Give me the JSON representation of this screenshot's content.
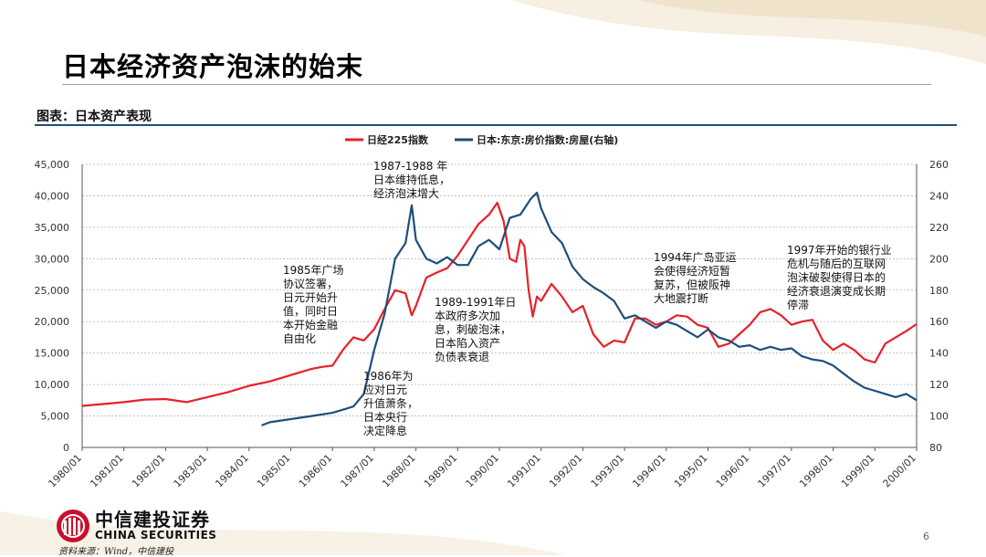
{
  "page": {
    "title": "日本经济资产泡沫的始末",
    "subtitle": "图表：日本资产表现",
    "source": "资料来源：Wind，中信建投",
    "page_number": "6",
    "logo": {
      "name_cn": "中信建投证券",
      "name_en": "CHINA SECURITIES"
    }
  },
  "colors": {
    "nikkei": "#e8202a",
    "housing": "#1f4e79",
    "accent": "#1f4e79"
  },
  "chart_data": {
    "type": "line",
    "title": "图表：日本资产表现",
    "x_labels": [
      "1980/01",
      "1981/01",
      "1982/01",
      "1983/01",
      "1984/01",
      "1985/01",
      "1986/01",
      "1987/01",
      "1988/01",
      "1989/01",
      "1990/01",
      "1991/01",
      "1992/01",
      "1993/01",
      "1994/01",
      "1995/01",
      "1996/01",
      "1997/01",
      "1998/01",
      "1999/01",
      "2000/01"
    ],
    "x_range": [
      1980.0,
      2000.0
    ],
    "y_left": {
      "range": [
        0,
        45000
      ],
      "ticks": [
        "0",
        "5,000",
        "10,000",
        "15,000",
        "20,000",
        "25,000",
        "30,000",
        "35,000",
        "40,000",
        "45,000"
      ]
    },
    "y_right": {
      "range": [
        80,
        260
      ],
      "ticks": [
        "80",
        "100",
        "120",
        "140",
        "160",
        "180",
        "200",
        "220",
        "240",
        "260"
      ]
    },
    "legend_position": "top-center",
    "series": [
      {
        "name": "日经225指数",
        "axis": "left",
        "x": [
          1980.0,
          1980.5,
          1981.0,
          1981.5,
          1982.0,
          1982.5,
          1983.0,
          1983.5,
          1984.0,
          1984.5,
          1985.0,
          1985.5,
          1985.75,
          1986.0,
          1986.25,
          1986.5,
          1986.75,
          1987.0,
          1987.25,
          1987.5,
          1987.75,
          1987.9,
          1988.0,
          1988.25,
          1988.5,
          1988.75,
          1989.0,
          1989.25,
          1989.5,
          1989.75,
          1989.95,
          1990.1,
          1990.25,
          1990.4,
          1990.5,
          1990.6,
          1990.7,
          1990.8,
          1990.9,
          1991.0,
          1991.25,
          1991.5,
          1991.75,
          1992.0,
          1992.25,
          1992.5,
          1992.75,
          1993.0,
          1993.25,
          1993.5,
          1993.75,
          1994.0,
          1994.25,
          1994.5,
          1994.75,
          1995.0,
          1995.25,
          1995.5,
          1995.75,
          1996.0,
          1996.25,
          1996.5,
          1996.75,
          1997.0,
          1997.25,
          1997.5,
          1997.75,
          1998.0,
          1998.25,
          1998.5,
          1998.75,
          1999.0,
          1999.25,
          1999.5,
          1999.75,
          2000.0
        ],
        "values": [
          6600,
          6900,
          7200,
          7600,
          7700,
          7200,
          8000,
          8800,
          9800,
          10500,
          11500,
          12500,
          12800,
          13000,
          15500,
          17500,
          17000,
          18800,
          22000,
          25000,
          24500,
          21000,
          22500,
          27000,
          27800,
          28500,
          30500,
          33000,
          35500,
          37000,
          38900,
          36000,
          30000,
          29500,
          33000,
          32000,
          25000,
          20800,
          24000,
          23300,
          26000,
          24000,
          21500,
          22500,
          18000,
          16000,
          17000,
          16700,
          20500,
          20500,
          19500,
          20000,
          21000,
          20800,
          19500,
          19000,
          16000,
          16500,
          18000,
          19500,
          21500,
          22000,
          21000,
          19500,
          20000,
          20300,
          17000,
          15500,
          16500,
          15500,
          14000,
          13500,
          16500,
          17500,
          18500,
          19600
        ]
      },
      {
        "name": "日本:东京:房价指数:房屋(右轴)",
        "axis": "right",
        "x": [
          1984.3,
          1984.5,
          1985.0,
          1985.5,
          1986.0,
          1986.5,
          1986.75,
          1987.0,
          1987.25,
          1987.5,
          1987.75,
          1987.9,
          1988.0,
          1988.25,
          1988.5,
          1988.75,
          1989.0,
          1989.25,
          1989.5,
          1989.75,
          1990.0,
          1990.25,
          1990.5,
          1990.75,
          1990.9,
          1991.0,
          1991.25,
          1991.5,
          1991.75,
          1992.0,
          1992.25,
          1992.5,
          1992.75,
          1993.0,
          1993.25,
          1993.5,
          1993.75,
          1994.0,
          1994.25,
          1994.5,
          1994.75,
          1995.0,
          1995.25,
          1995.5,
          1995.75,
          1996.0,
          1996.25,
          1996.5,
          1996.75,
          1997.0,
          1997.25,
          1997.5,
          1997.75,
          1998.0,
          1998.25,
          1998.5,
          1998.75,
          1999.0,
          1999.25,
          1999.5,
          1999.75,
          2000.0
        ],
        "values": [
          94,
          96,
          98,
          100,
          102,
          106,
          114,
          142,
          165,
          200,
          210,
          234,
          212,
          200,
          197,
          201,
          196,
          196,
          208,
          212,
          206,
          226,
          228,
          238,
          242,
          232,
          217,
          210,
          195,
          187,
          182,
          178,
          173,
          162,
          164,
          160,
          156,
          160,
          158,
          154,
          150,
          155,
          150,
          148,
          144,
          145,
          142,
          144,
          142,
          143,
          138,
          136,
          135,
          132,
          127,
          122,
          118,
          116,
          114,
          112,
          114,
          110
        ]
      }
    ],
    "annotations": [
      {
        "text": "1985年广场\n协议签署，\n日元开始升\n值，同时日\n本开始金融\n自由化"
      },
      {
        "text": "1986年为\n应对日元\n升值萧条，\n日本央行\n决定降息"
      },
      {
        "text": "1987-1988  年\n日本维持低息，\n经济泡沫增大"
      },
      {
        "text": "1989-1991年日\n本政府多次加\n息，刺破泡沫，\n日本陷入资产\n负债表衰退"
      },
      {
        "text": "1994年广岛亚运\n会使得经济短暂\n复苏，但被阪神\n大地震打断"
      },
      {
        "text": "1997年开始的银行业\n危机与随后的互联网\n泡沫破裂使得日本的\n经济衰退演变成长期\n停滞"
      }
    ]
  }
}
